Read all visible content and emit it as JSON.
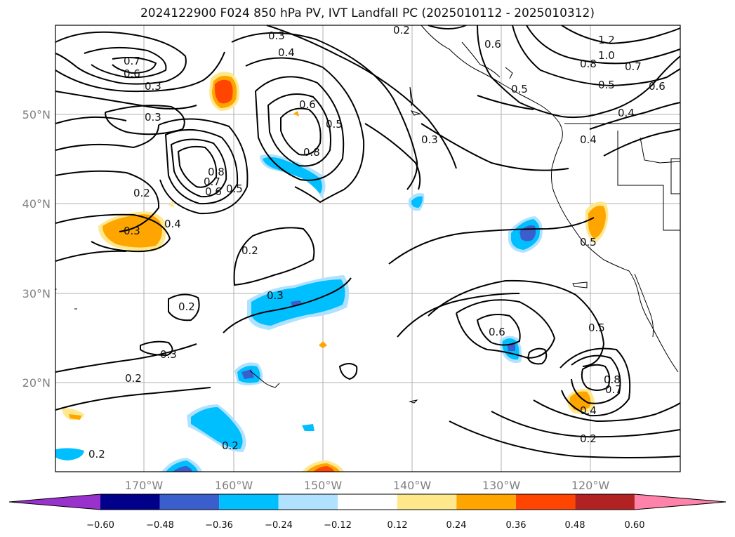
{
  "title": "2024122900 F024 850 hPa PV, IVT Landfall PC (2025010112 - 2025010312)",
  "map": {
    "lon_ticks": [
      "170°W",
      "160°W",
      "150°W",
      "140°W",
      "130°W",
      "120°W"
    ],
    "lat_ticks": [
      "50°N",
      "40°N",
      "30°N",
      "20°N"
    ],
    "grid": true
  },
  "contour_labels": [
    "1.2",
    "1.0",
    "0.8",
    "0.7",
    "0.6",
    "0.5",
    "0.4",
    "0.3",
    "0.2",
    "0.3",
    "0.4",
    "0.5",
    "0.6",
    "0.7",
    "0.8",
    "0.6",
    "0.5",
    "0.3",
    "0.2",
    "0.3",
    "0.2",
    "0.2",
    "0.3",
    "0.4",
    "0.5",
    "0.6",
    "0.7",
    "0.8",
    "0.4",
    "0.3",
    "0.2",
    "0.6",
    "0.5",
    "0.4",
    "0.2",
    "0.6",
    "0.7",
    "0.8",
    "0.5",
    "0.3",
    "0.2",
    "0.2"
  ],
  "colorbar": {
    "ticks": [
      "−0.60",
      "−0.48",
      "−0.36",
      "−0.24",
      "−0.12",
      "0.12",
      "0.24",
      "0.36",
      "0.48",
      "0.60"
    ],
    "colors": [
      "#9932cc",
      "#00008b",
      "#3a5fcd",
      "#00bfff",
      "#b0e2ff",
      "#ffffff",
      "#ffe88c",
      "#ffa500",
      "#ff4500",
      "#b22222",
      "#ff82ab"
    ]
  }
}
